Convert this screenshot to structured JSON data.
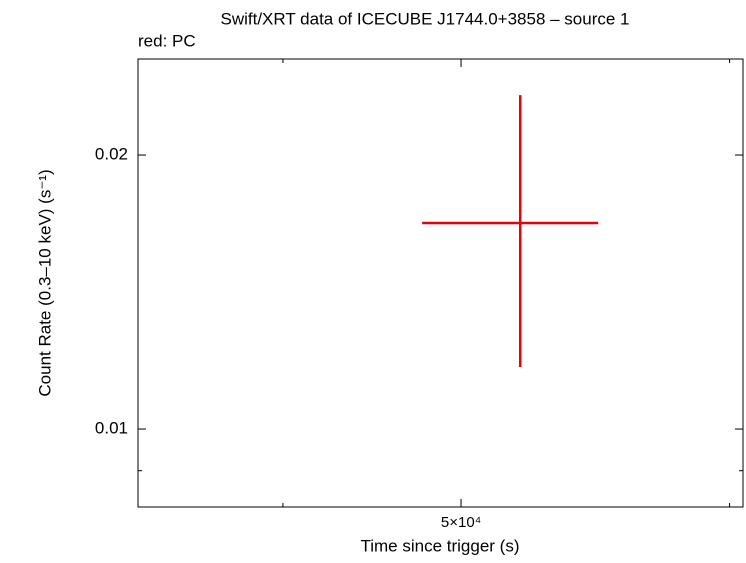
{
  "chart_data": {
    "type": "errorbar",
    "title": "Swift/XRT data of ICECUBE J1744.0+3858 – source 1",
    "subtitle": "red: PC",
    "x_label": "Time since trigger (s)",
    "y_label": "Count Rate (0.3–10 keV) (s⁻¹)",
    "x_scale": "log",
    "y_scale": "log",
    "xlim": [
      33358,
      71186
    ],
    "ylim": [
      0.00821,
      0.0255
    ],
    "xticks": [
      {
        "value": 50000,
        "label": "5×10⁴"
      }
    ],
    "xminor_ticks": [
      40000,
      70000
    ],
    "yticks": [
      0.01,
      0.02
    ],
    "yminor_ticks": [
      0.009
    ],
    "series": [
      {
        "name": "PC",
        "color": "#e8000b",
        "x": [
          53850
        ],
        "values": [
          0.01684
        ],
        "x_low": [
          47620
        ],
        "x_high": [
          59375
        ],
        "y_low": [
          0.0117
        ],
        "y_high": [
          0.02327
        ]
      }
    ]
  }
}
